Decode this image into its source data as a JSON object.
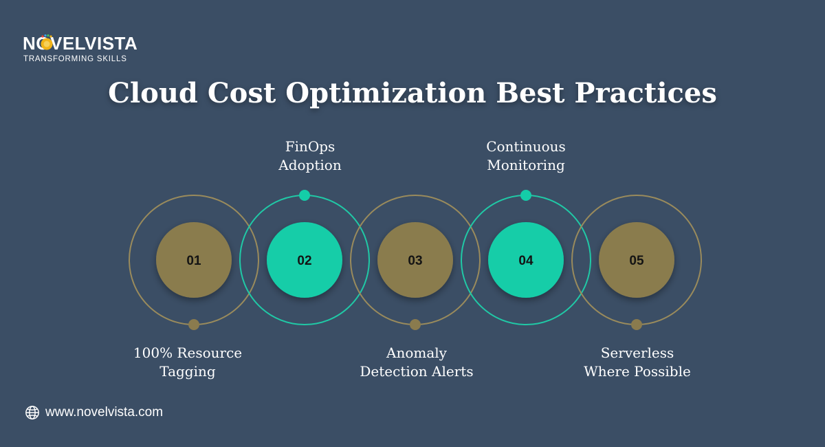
{
  "brand": {
    "name": "NOVELVISTA",
    "tagline": "TRANSFORMING SKILLS"
  },
  "title": "Cloud Cost Optimization Best Practices",
  "colors": {
    "background": "#3b4e65",
    "olive": "#8a7b4e",
    "olive_ring": "#9a8b5c",
    "teal": "#14cda8",
    "teal_ring": "#20c9a6"
  },
  "steps": [
    {
      "number": "01",
      "label_line1": "100% Resource",
      "label_line2": "Tagging",
      "color": "olive",
      "label_position": "bottom"
    },
    {
      "number": "02",
      "label_line1": "FinOps",
      "label_line2": "Adoption",
      "color": "teal",
      "label_position": "top"
    },
    {
      "number": "03",
      "label_line1": "Anomaly",
      "label_line2": "Detection Alerts",
      "color": "olive",
      "label_position": "bottom"
    },
    {
      "number": "04",
      "label_line1": "Continuous",
      "label_line2": "Monitoring",
      "color": "teal",
      "label_position": "top"
    },
    {
      "number": "05",
      "label_line1": "Serverless",
      "label_line2": "Where Possible",
      "color": "olive",
      "label_position": "bottom"
    }
  ],
  "footer": {
    "url": "www.novelvista.com",
    "icon": "globe-icon"
  }
}
